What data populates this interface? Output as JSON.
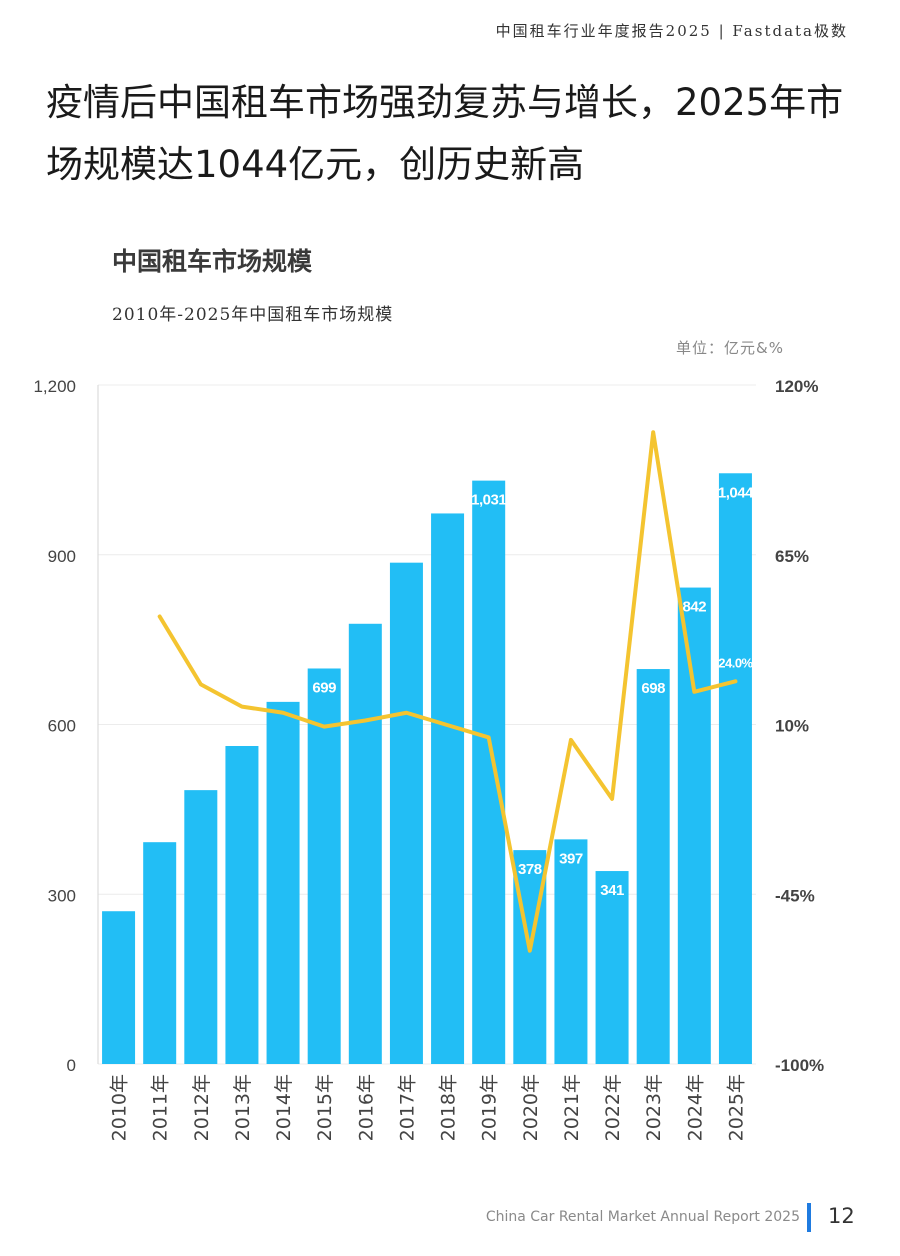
{
  "header": {
    "report_title": "中国租车行业年度报告2025 | Fastdata极数"
  },
  "headline": "疫情后中国租车市场强劲复苏与增长，2025年市场规模达1044亿元，创历史新高",
  "chart_title": "中国租车市场规模",
  "chart_subtitle": "2010年-2025年中国租车市场规模",
  "unit_label": "单位：亿元&%",
  "footer": {
    "text": "China Car Rental Market Annual Report 2025",
    "page_number": "12"
  },
  "colors": {
    "bar": "#22bef5",
    "line": "#f4c430",
    "footer_accent": "#1f7be0"
  },
  "chart_data": {
    "type": "bar+line",
    "categories": [
      "2010年",
      "2011年",
      "2012年",
      "2013年",
      "2014年",
      "2015年",
      "2016年",
      "2017年",
      "2018年",
      "2019年",
      "2020年",
      "2021年",
      "2022年",
      "2023年",
      "2024年",
      "2025年"
    ],
    "series": [
      {
        "axis": "left",
        "kind": "bar",
        "values": [
          270,
          392,
          484,
          562,
          640,
          699,
          778,
          886,
          973,
          1031,
          378,
          397,
          341,
          698,
          842,
          1044
        ],
        "data_labels": [
          "",
          "",
          "",
          "",
          "",
          "699",
          "",
          "",
          "",
          "1,031",
          "378",
          "397",
          "341",
          "698",
          "842",
          "1,044"
        ]
      },
      {
        "axis": "right",
        "kind": "line",
        "values": [
          null,
          45.0,
          23.0,
          15.8,
          13.8,
          9.3,
          11.3,
          13.8,
          9.8,
          5.8,
          -63.3,
          5.0,
          -14.1,
          104.7,
          20.6,
          24.0
        ],
        "data_labels": [
          "",
          "",
          "",
          "",
          "",
          "",
          "",
          "",
          "",
          "",
          "",
          "",
          "",
          "",
          "",
          "24.0%"
        ]
      }
    ],
    "y_left": {
      "ticks": [
        "0",
        "300",
        "600",
        "900",
        "1,200"
      ],
      "ylim": [
        0,
        1200
      ]
    },
    "y_right": {
      "ticks": [
        "-100%",
        "-45%",
        "10%",
        "65%",
        "120%"
      ],
      "ylim": [
        -100,
        120
      ]
    },
    "grid": true,
    "legend": "none"
  }
}
